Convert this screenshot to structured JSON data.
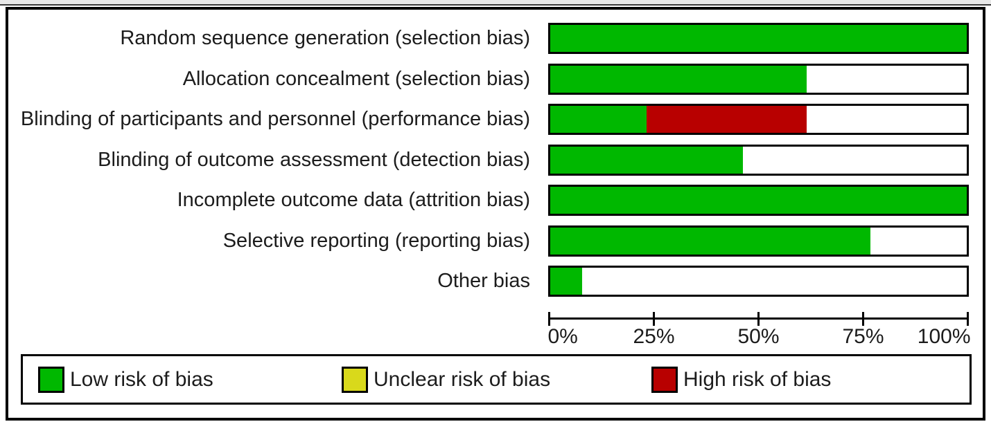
{
  "chart_data": {
    "type": "bar",
    "variant": "horizontal-stacked-percentage",
    "title": "",
    "xlabel": "",
    "ylabel": "",
    "xlim": [
      0,
      100
    ],
    "x_tick_labels": [
      "0%",
      "25%",
      "50%",
      "75%",
      "100%"
    ],
    "x_tick_values": [
      0,
      25,
      50,
      75,
      100
    ],
    "grid": false,
    "legend_position": "bottom",
    "categories": [
      "Random sequence generation (selection bias)",
      "Allocation concealment (selection bias)",
      "Blinding of participants and personnel (performance bias)",
      "Blinding of outcome assessment (detection bias)",
      "Incomplete outcome data (attrition bias)",
      "Selective reporting (reporting bias)",
      "Other bias"
    ],
    "series": [
      {
        "name": "Low risk of bias",
        "color": "#00b800",
        "values": [
          100,
          61.5,
          23.1,
          46.2,
          100,
          76.9,
          7.7
        ]
      },
      {
        "name": "Unclear risk of bias",
        "color": "#d9d91b",
        "values": [
          0,
          0,
          0,
          0,
          0,
          0,
          0
        ]
      },
      {
        "name": "High risk of bias",
        "color": "#b80000",
        "values": [
          0,
          0,
          38.5,
          0,
          0,
          0,
          0
        ]
      }
    ]
  },
  "legend": {
    "items": [
      {
        "label": "Low risk of bias",
        "color": "#00b800"
      },
      {
        "label": "Unclear risk of bias",
        "color": "#d9d91b"
      },
      {
        "label": "High risk of bias",
        "color": "#b80000"
      }
    ]
  },
  "colors": {
    "low_risk": "#00b800",
    "unclear_risk": "#d9d91b",
    "high_risk": "#b80000",
    "border": "#000000",
    "background": "#ffffff"
  }
}
